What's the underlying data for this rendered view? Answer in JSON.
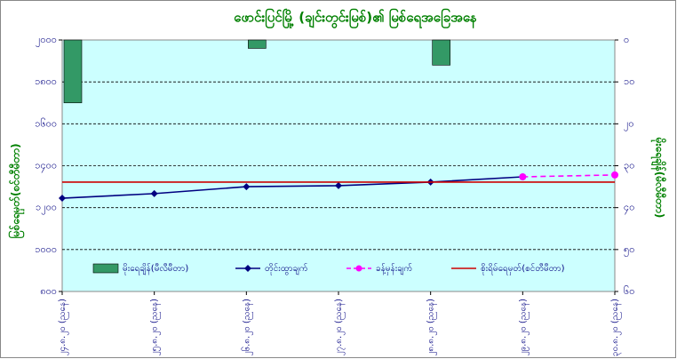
{
  "chart_data": {
    "type": "combo",
    "title": "ဖောင်းပြင်မြို့ (ချင်းတွင်းမြစ်)၏ မြစ်ရေအခြေအနေ",
    "ylabel": "မြစ်ရေမှတ်(စင်တီမီတာ)",
    "y2label": "မိုးရေချိန်(မီလီမီတာ)",
    "categories": [
      "၂၄.၈.၂၀ (ညနေ)",
      "၂၅.၈.၂၀ (ညနေ)",
      "၂၆.၈.၂၀ (ညနေ)",
      "၂၇.၈.၂၀ (ညနေ)",
      "၂၈.၈.၂၀ (ညနေ)",
      "၂၉.၈.၂၀ (ညနေ)",
      "၃၀.၈.၂၀ (ညနေ)"
    ],
    "ylim": [
      800,
      2000
    ],
    "yticks": [
      {
        "value": 800,
        "label": "၈၀၀"
      },
      {
        "value": 1000,
        "label": "၁၀၀၀"
      },
      {
        "value": 1200,
        "label": "၁၂၀၀"
      },
      {
        "value": 1400,
        "label": "၁၄၀၀"
      },
      {
        "value": 1600,
        "label": "၁၆၀၀"
      },
      {
        "value": 1800,
        "label": "၁၈၀၀"
      },
      {
        "value": 2000,
        "label": "၂၀၀၀"
      }
    ],
    "y2lim": [
      0,
      60
    ],
    "y2_inverted": true,
    "y2ticks": [
      {
        "value": 0,
        "label": "၀"
      },
      {
        "value": 10,
        "label": "၁၀"
      },
      {
        "value": 20,
        "label": "၂၀"
      },
      {
        "value": 30,
        "label": "၃၀"
      },
      {
        "value": 40,
        "label": "၄၀"
      },
      {
        "value": 50,
        "label": "၅၀"
      },
      {
        "value": 60,
        "label": "၆၀"
      }
    ],
    "grid": true,
    "series": [
      {
        "name": "မိုးရေချိန်(မီလီမီတာ)",
        "kind": "bar",
        "axis": "y2",
        "color": "#339966",
        "values": [
          15,
          null,
          2,
          null,
          6,
          null,
          null
        ]
      },
      {
        "name": "တိုင်းထွာချက်",
        "kind": "line",
        "marker": "diamond",
        "color": "#000080",
        "values": [
          1245,
          1267,
          1300,
          1305,
          1322,
          1347,
          null
        ]
      },
      {
        "name": "ခန့်မှန်းချက်",
        "kind": "line",
        "marker": "circle",
        "dashed": true,
        "color": "#ff00ff",
        "values": [
          null,
          null,
          null,
          null,
          null,
          1347,
          1356
        ]
      },
      {
        "name": "စိုးရိမ်ရေမှတ်(စင်တီမီတာ)",
        "kind": "line",
        "color": "#cc0000",
        "values": [
          1322,
          1322,
          1322,
          1322,
          1322,
          1322,
          1322
        ]
      }
    ]
  }
}
